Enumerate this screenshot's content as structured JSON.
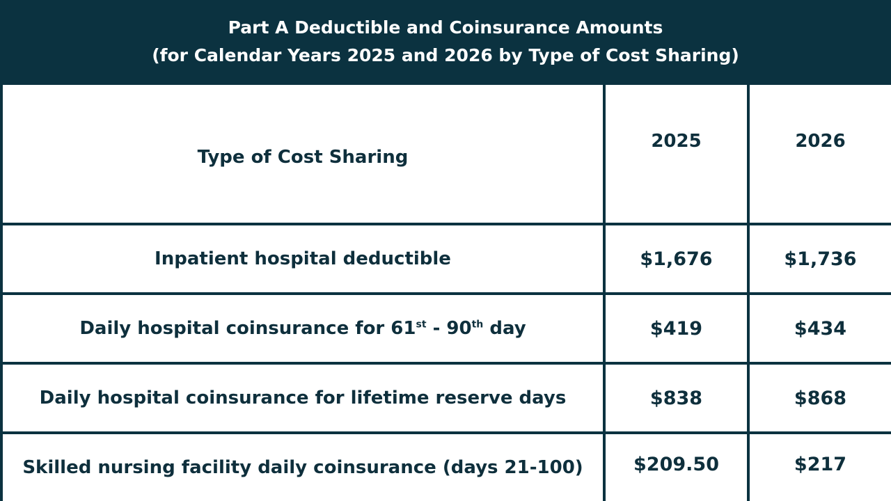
{
  "title": {
    "line1": "Part A Deductible and Coinsurance Amounts",
    "line2": "(for Calendar Years 2025 and 2026 by Type of Cost Sharing)"
  },
  "table": {
    "headers": {
      "type": "Type of Cost Sharing",
      "year1": "2025",
      "year2": "2026"
    },
    "rows": [
      {
        "label": "Inpatient hospital deductible",
        "v2025": "$1,676",
        "v2026": "$1,736"
      },
      {
        "label_parts": {
          "pre": "Daily hospital coinsurance for 61",
          "sup1": "st",
          "mid": " - 90",
          "sup2": "th",
          "post": " day"
        },
        "v2025": "$419",
        "v2026": "$434"
      },
      {
        "label": "Daily hospital coinsurance for lifetime reserve days",
        "v2025": "$838",
        "v2026": "$868"
      },
      {
        "label": "Skilled nursing facility daily coinsurance (days 21-100)",
        "v2025": "$209.50",
        "v2026": "$217"
      }
    ]
  },
  "colors": {
    "header_bg": "#0b3240",
    "text": "#0e2f3c",
    "border": "#0b3240"
  }
}
